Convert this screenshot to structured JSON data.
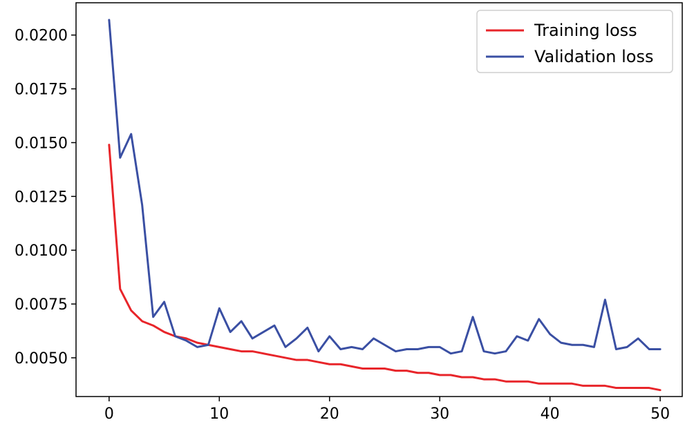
{
  "chart_data": {
    "type": "line",
    "title": "",
    "xlabel": "",
    "ylabel": "",
    "xlim": [
      -3,
      52
    ],
    "ylim": [
      0.0032,
      0.0215
    ],
    "xticks": [
      {
        "value": 0,
        "label": "0"
      },
      {
        "value": 10,
        "label": "10"
      },
      {
        "value": 20,
        "label": "20"
      },
      {
        "value": 30,
        "label": "30"
      },
      {
        "value": 40,
        "label": "40"
      },
      {
        "value": 50,
        "label": "50"
      }
    ],
    "yticks": [
      {
        "value": 0.005,
        "label": "0.0050"
      },
      {
        "value": 0.0075,
        "label": "0.0075"
      },
      {
        "value": 0.01,
        "label": "0.0100"
      },
      {
        "value": 0.0125,
        "label": "0.0125"
      },
      {
        "value": 0.015,
        "label": "0.0150"
      },
      {
        "value": 0.0175,
        "label": "0.0175"
      },
      {
        "value": 0.02,
        "label": "0.0200"
      }
    ],
    "grid": false,
    "legend": "top-right",
    "x": [
      0,
      1,
      2,
      3,
      4,
      5,
      6,
      7,
      8,
      9,
      10,
      11,
      12,
      13,
      14,
      15,
      16,
      17,
      18,
      19,
      20,
      21,
      22,
      23,
      24,
      25,
      26,
      27,
      28,
      29,
      30,
      31,
      32,
      33,
      34,
      35,
      36,
      37,
      38,
      39,
      40,
      41,
      42,
      43,
      44,
      45,
      46,
      47,
      48,
      49,
      50
    ],
    "series": [
      {
        "name": "Training loss",
        "color": "#e8252a",
        "values": [
          0.0149,
          0.0082,
          0.0072,
          0.0067,
          0.0065,
          0.0062,
          0.006,
          0.0059,
          0.0057,
          0.0056,
          0.0055,
          0.0054,
          0.0053,
          0.0053,
          0.0052,
          0.0051,
          0.005,
          0.0049,
          0.0049,
          0.0048,
          0.0047,
          0.0047,
          0.0046,
          0.0045,
          0.0045,
          0.0045,
          0.0044,
          0.0044,
          0.0043,
          0.0043,
          0.0042,
          0.0042,
          0.0041,
          0.0041,
          0.004,
          0.004,
          0.0039,
          0.0039,
          0.0039,
          0.0038,
          0.0038,
          0.0038,
          0.0038,
          0.0037,
          0.0037,
          0.0037,
          0.0036,
          0.0036,
          0.0036,
          0.0036,
          0.0035
        ]
      },
      {
        "name": "Validation loss",
        "color": "#3a4fa3",
        "values": [
          0.0207,
          0.0143,
          0.0154,
          0.0121,
          0.0069,
          0.0076,
          0.006,
          0.0058,
          0.0055,
          0.0056,
          0.0073,
          0.0062,
          0.0067,
          0.0059,
          0.0062,
          0.0065,
          0.0055,
          0.0059,
          0.0064,
          0.0053,
          0.006,
          0.0054,
          0.0055,
          0.0054,
          0.0059,
          0.0056,
          0.0053,
          0.0054,
          0.0054,
          0.0055,
          0.0055,
          0.0052,
          0.0053,
          0.0069,
          0.0053,
          0.0052,
          0.0053,
          0.006,
          0.0058,
          0.0068,
          0.0061,
          0.0057,
          0.0056,
          0.0056,
          0.0055,
          0.0077,
          0.0054,
          0.0055,
          0.0059,
          0.0054,
          0.0054
        ]
      }
    ]
  }
}
